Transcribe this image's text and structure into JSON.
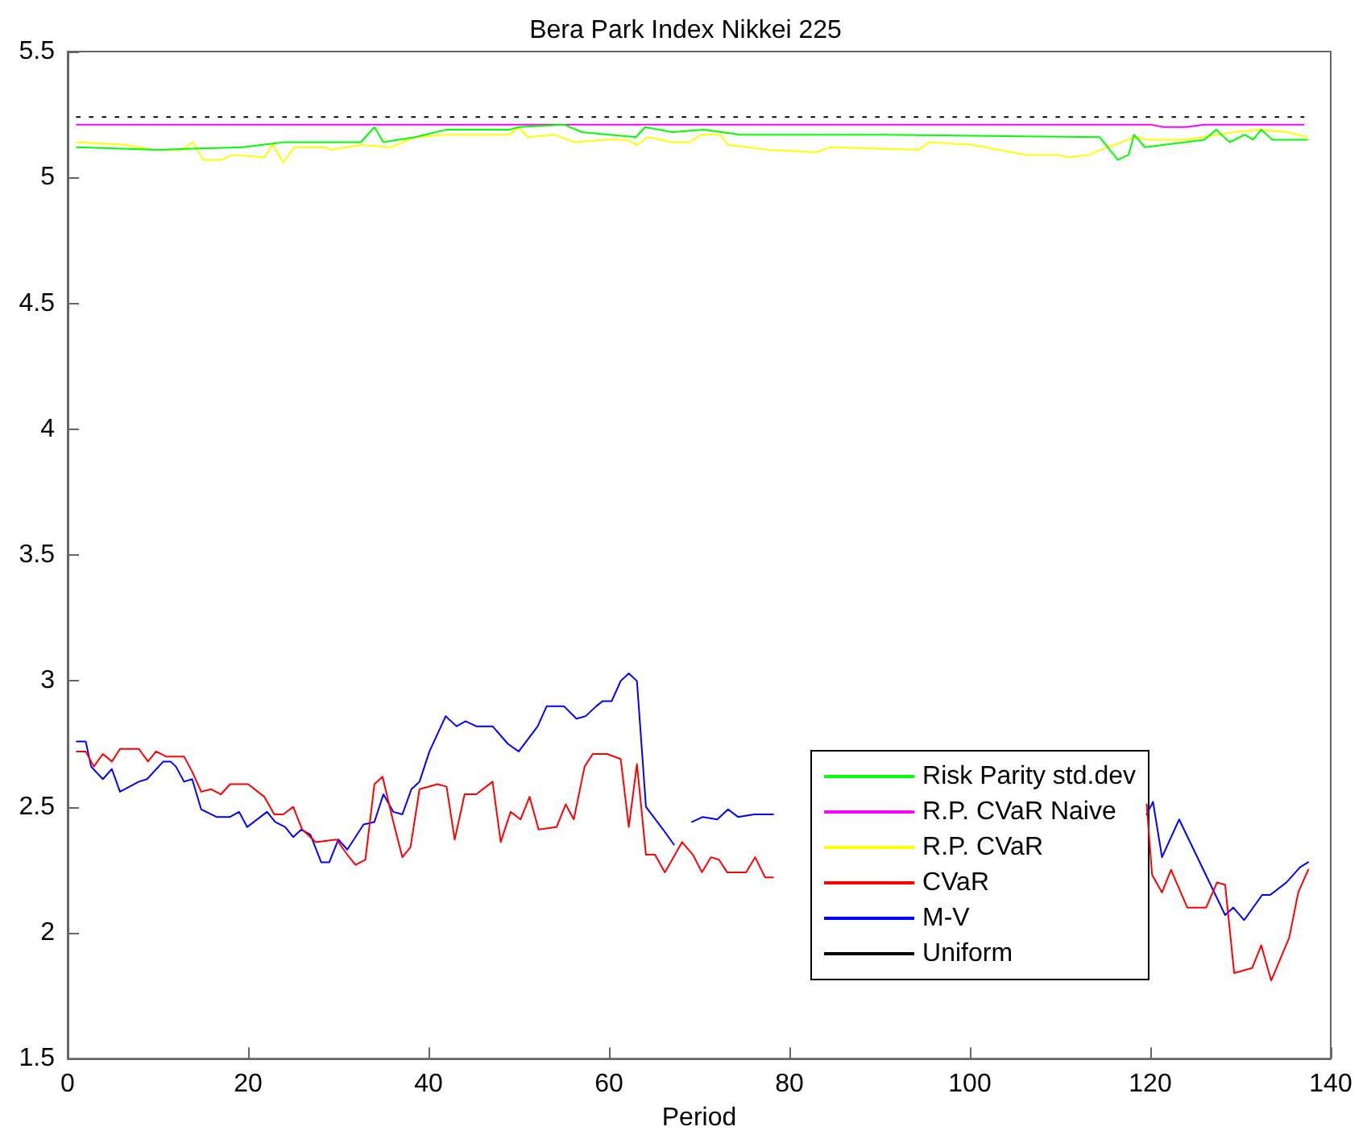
{
  "chart_data": {
    "type": "line",
    "title": "Bera Park Index Nikkei 225",
    "xlabel": "Period",
    "xlim": [
      0,
      140
    ],
    "xticks": [
      0,
      20,
      40,
      60,
      80,
      100,
      120,
      140
    ],
    "ylim": [
      1.5,
      5.5
    ],
    "yticks": [
      1.5,
      2,
      2.5,
      3,
      3.5,
      4,
      4.5,
      5,
      5.5
    ],
    "grid": false,
    "legend": "bottom right",
    "marker": "none",
    "series": [
      {
        "name": "Risk Parity std.dev",
        "color": "#00ff00",
        "x": [
          1,
          10,
          19.4,
          24,
          32.5,
          34,
          35,
          38.5,
          42,
          49,
          50,
          55,
          57,
          63,
          64,
          67,
          70.5,
          74.6,
          90.5,
          114.4,
          116.4,
          117.6,
          118.2,
          119.4,
          126,
          127.3,
          128.8,
          130.5,
          131.4,
          132.3,
          133.5,
          137.4
        ],
        "values": [
          5.12,
          5.11,
          5.12,
          5.14,
          5.14,
          5.2,
          5.14,
          5.16,
          5.19,
          5.19,
          5.2,
          5.21,
          5.18,
          5.16,
          5.2,
          5.18,
          5.19,
          5.17,
          5.17,
          5.16,
          5.07,
          5.09,
          5.17,
          5.12,
          5.15,
          5.19,
          5.14,
          5.17,
          5.15,
          5.19,
          5.15,
          5.15
        ]
      },
      {
        "name": "R.P. CVaR Naive",
        "color": "#ff00ff",
        "x": [
          1,
          120,
          121.5,
          124,
          126,
          137
        ],
        "values": [
          5.21,
          5.21,
          5.2,
          5.2,
          5.21,
          5.21
        ]
      },
      {
        "name": "R.P. CVaR",
        "color": "#ffff00",
        "x": [
          1,
          6.4,
          9.4,
          12.7,
          13.9,
          15,
          17.1,
          18.3,
          21.8,
          22.7,
          23.9,
          25.1,
          28.4,
          29.3,
          32.5,
          35.8,
          38.5,
          42,
          49,
          50,
          51,
          53.9,
          56.2,
          59.8,
          61.9,
          63.1,
          64.3,
          67,
          69,
          70.2,
          72.3,
          73.2,
          77.7,
          83,
          84.5,
          94.3,
          95.5,
          100.2,
          106.1,
          109.7,
          110.9,
          113.3,
          114.5,
          118.3,
          119.8,
          123.9,
          127.5,
          129.3,
          132.2,
          135.2,
          137.4
        ],
        "values": [
          5.14,
          5.13,
          5.11,
          5.11,
          5.14,
          5.07,
          5.07,
          5.09,
          5.08,
          5.13,
          5.06,
          5.12,
          5.12,
          5.11,
          5.13,
          5.12,
          5.16,
          5.17,
          5.17,
          5.2,
          5.16,
          5.17,
          5.14,
          5.15,
          5.15,
          5.13,
          5.16,
          5.14,
          5.14,
          5.17,
          5.17,
          5.13,
          5.11,
          5.1,
          5.12,
          5.11,
          5.14,
          5.13,
          5.09,
          5.09,
          5.08,
          5.09,
          5.11,
          5.16,
          5.15,
          5.15,
          5.17,
          5.18,
          5.19,
          5.18,
          5.16
        ]
      },
      {
        "name": "CVaR",
        "color": "#ff0000",
        "x": [
          1,
          2,
          2.9,
          3.9,
          4.9,
          5.8,
          7.9,
          8.9,
          9.8,
          10.9,
          12.9,
          13.8,
          14.8,
          15.9,
          17,
          18,
          20,
          21.8,
          22.9,
          23.9,
          25,
          26,
          27.5,
          29.8,
          31,
          31.9,
          33,
          34,
          34.9,
          36.1,
          37.1,
          38,
          39,
          41,
          42,
          42.9,
          44,
          45.3,
          47.1,
          48,
          49.1,
          50.2,
          51.2,
          52.2,
          54.2,
          55.2,
          56.1,
          57.3,
          58.2,
          59.8,
          61.3,
          62.2,
          63.1,
          64.1,
          65.1,
          66.2,
          68.1,
          69.3,
          70.3,
          71.3,
          72.2,
          73.1,
          75.2,
          76.2,
          77.3,
          78.2,
          100,
          119.6,
          120.2,
          121.3,
          122.3,
          124.1,
          126.2,
          127.4,
          128.3,
          129.3,
          131.3,
          132.3,
          133.4,
          135.4,
          136.4,
          137.5
        ],
        "values": [
          2.72,
          2.72,
          2.66,
          2.71,
          2.68,
          2.73,
          2.73,
          2.68,
          2.72,
          2.7,
          2.7,
          2.64,
          2.56,
          2.57,
          2.55,
          2.59,
          2.59,
          2.54,
          2.47,
          2.47,
          2.5,
          2.41,
          2.36,
          2.37,
          2.31,
          2.27,
          2.29,
          2.59,
          2.62,
          2.44,
          2.3,
          2.34,
          2.57,
          2.59,
          2.58,
          2.37,
          2.55,
          2.55,
          2.6,
          2.36,
          2.48,
          2.45,
          2.54,
          2.41,
          2.42,
          2.51,
          2.45,
          2.66,
          2.71,
          2.71,
          2.69,
          2.42,
          2.67,
          2.31,
          2.31,
          2.24,
          2.36,
          2.31,
          2.24,
          2.3,
          2.29,
          2.24,
          2.24,
          2.3,
          2.22,
          2.22,
          null,
          2.51,
          2.23,
          2.16,
          2.25,
          2.1,
          2.1,
          2.2,
          2.19,
          1.84,
          1.86,
          1.95,
          1.81,
          1.98,
          2.16,
          2.25
        ]
      },
      {
        "name": "M-V",
        "color": "#0000ff",
        "x": [
          1,
          2,
          2.6,
          3.9,
          4.9,
          5.8,
          7.9,
          8.8,
          10.6,
          11.4,
          12,
          12.9,
          13.8,
          14.8,
          16.5,
          18,
          19,
          19.9,
          22.1,
          23,
          24.1,
          25,
          25.9,
          26.9,
          28.1,
          29,
          30,
          31,
          32.8,
          34,
          35,
          36.1,
          37.1,
          38.1,
          39,
          40.1,
          41.9,
          43.1,
          44.1,
          45.3,
          47.1,
          48.8,
          50,
          52.1,
          53.1,
          55,
          56.4,
          57.4,
          58.6,
          59.3,
          60.3,
          61.3,
          62.2,
          63.1,
          64.1,
          66,
          67.2,
          68.2,
          69.2,
          70.4,
          72,
          73.2,
          74.3,
          76.1,
          78.2,
          100,
          119.6,
          120.3,
          121.3,
          123.2,
          128.3,
          129.2,
          130.4,
          132.4,
          133.3,
          135.1,
          136.6,
          137.5
        ],
        "values": [
          2.76,
          2.76,
          2.66,
          2.61,
          2.65,
          2.56,
          2.6,
          2.61,
          2.68,
          2.68,
          2.66,
          2.6,
          2.61,
          2.49,
          2.46,
          2.46,
          2.48,
          2.42,
          2.48,
          2.44,
          2.42,
          2.38,
          2.41,
          2.39,
          2.28,
          2.28,
          2.37,
          2.33,
          2.43,
          2.44,
          2.55,
          2.48,
          2.47,
          2.57,
          2.6,
          2.72,
          2.86,
          2.82,
          2.84,
          2.82,
          2.82,
          2.75,
          2.72,
          2.82,
          2.9,
          2.9,
          2.85,
          2.86,
          2.9,
          2.92,
          2.92,
          3.0,
          3.03,
          3.0,
          2.5,
          2.41,
          2.35,
          null,
          2.44,
          2.46,
          2.45,
          2.49,
          2.46,
          2.47,
          2.47,
          null,
          2.47,
          2.52,
          2.3,
          2.45,
          2.07,
          2.1,
          2.05,
          2.15,
          2.15,
          2.2,
          2.26,
          2.28
        ]
      },
      {
        "name": "Uniform",
        "color": "#000000",
        "line_style": "dotted",
        "x": [
          1,
          137
        ],
        "values": [
          5.24,
          5.24
        ]
      }
    ]
  }
}
